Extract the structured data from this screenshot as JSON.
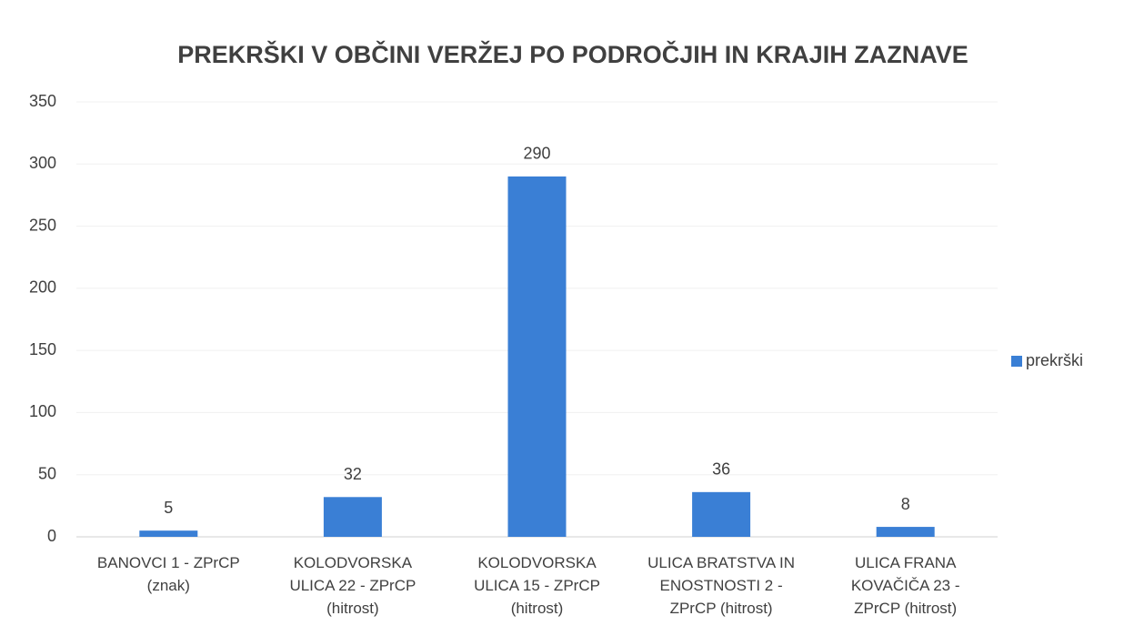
{
  "chart_data": {
    "type": "bar",
    "title": "PREKRŠKI V OBČINI VERŽEJ PO PODROČJIH IN KRAJIH ZAZNAVE",
    "categories": [
      "BANOVCI 1 - ZPrCP\n(znak)",
      "KOLODVORSKA\nULICA 22 - ZPrCP\n(hitrost)",
      "KOLODVORSKA\nULICA 15 - ZPrCP\n(hitrost)",
      "ULICA BRATSTVA IN\nENOSTNOSTI 2 -\nZPrCP (hitrost)",
      "ULICA FRANA\nKOVAČIČA 23 -\nZPrCP (hitrost)"
    ],
    "series": [
      {
        "name": "prekrški",
        "color": "#3a7fd5",
        "values": [
          5,
          32,
          290,
          36,
          8
        ]
      }
    ],
    "ylim": [
      0,
      350
    ],
    "yticks": [
      0,
      50,
      100,
      150,
      200,
      250,
      300,
      350
    ],
    "grid": true,
    "legend": "right"
  }
}
